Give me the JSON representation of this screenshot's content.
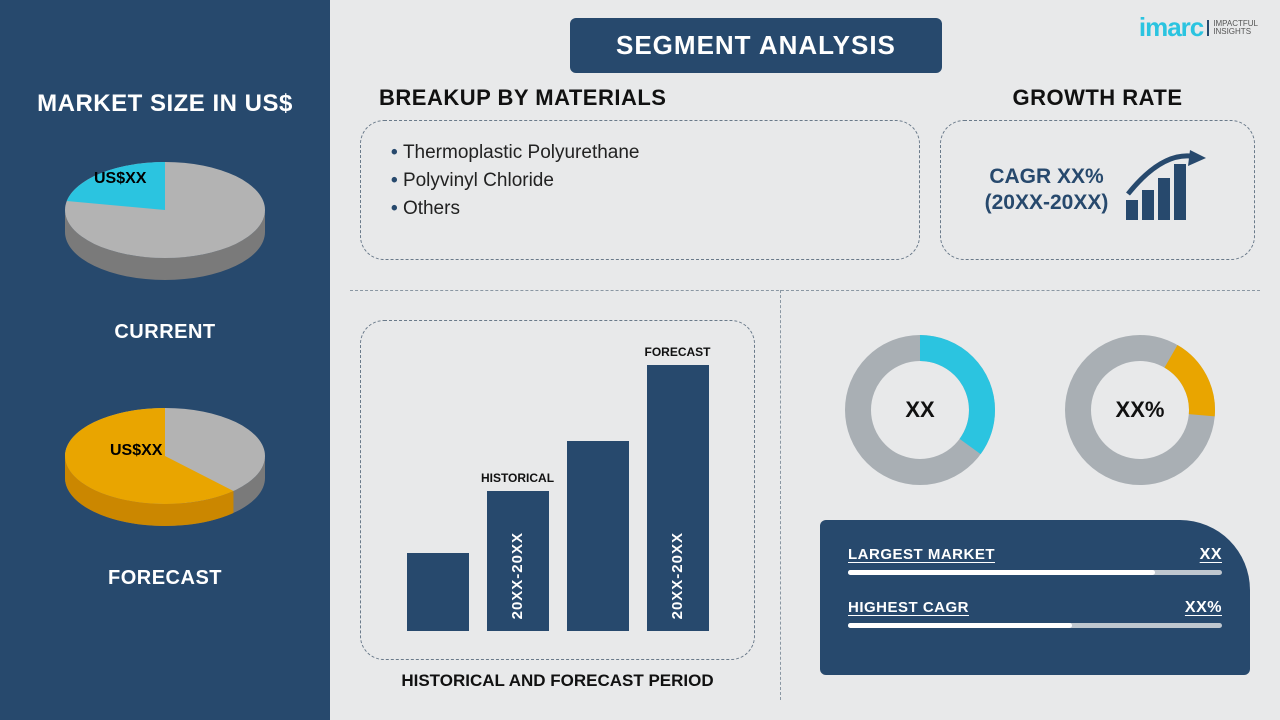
{
  "sidebar": {
    "title": "MARKET SIZE IN US$",
    "current": {
      "label": "CURRENT",
      "value_label": "US$XX",
      "slice_pct": 22,
      "slice_color": "#2bc4e0",
      "rest_color_top": "#b3b3b3",
      "rest_color_side": "#7a7a7a",
      "depth": 22
    },
    "forecast": {
      "label": "FORECAST",
      "value_label": "US$XX",
      "slice_pct": 62,
      "slice_color": "#e9a500",
      "rest_color_top": "#b3b3b3",
      "rest_color_side": "#7a7a7a",
      "depth": 22
    }
  },
  "banner": "SEGMENT ANALYSIS",
  "logo": {
    "brand_a": "imarc",
    "tag1": "IMPACTFUL",
    "tag2": "INSIGHTS",
    "cyan": "#2bc4e0",
    "navy": "#27496d"
  },
  "materials": {
    "title": "BREAKUP BY MATERIALS",
    "items": [
      "Thermoplastic Polyurethane",
      "Polyvinyl Chloride",
      "Others"
    ]
  },
  "growth": {
    "title": "GROWTH RATE",
    "line1": "CAGR XX%",
    "line2": "(20XX-20XX)",
    "icon_color": "#27496d"
  },
  "period": {
    "caption": "HISTORICAL AND FORECAST PERIOD",
    "bars": [
      {
        "height_pct": 28,
        "label_top": "",
        "vtext": ""
      },
      {
        "height_pct": 50,
        "label_top": "HISTORICAL",
        "vtext": "20XX-20XX"
      },
      {
        "height_pct": 68,
        "label_top": "",
        "vtext": ""
      },
      {
        "height_pct": 95,
        "label_top": "FORECAST",
        "vtext": "20XX-20XX"
      }
    ],
    "bar_color": "#27496d"
  },
  "rings": {
    "ring1": {
      "pct": 35,
      "start_deg": 270,
      "fg": "#2bc4e0",
      "bg": "#a9afb4",
      "label": "XX",
      "thickness": 26,
      "size": 150
    },
    "ring2": {
      "pct": 18,
      "start_deg": 300,
      "fg": "#e9a500",
      "bg": "#a9afb4",
      "label": "XX%",
      "thickness": 26,
      "size": 150
    }
  },
  "panel": {
    "bg": "#27496d",
    "row1": {
      "label": "LARGEST MARKET",
      "value": "XX",
      "fill_pct": 82
    },
    "row2": {
      "label": "HIGHEST CAGR",
      "value": "XX%",
      "fill_pct": 60
    }
  },
  "colors": {
    "page_bg": "#e8e9ea",
    "sidebar_bg": "#27496d"
  }
}
